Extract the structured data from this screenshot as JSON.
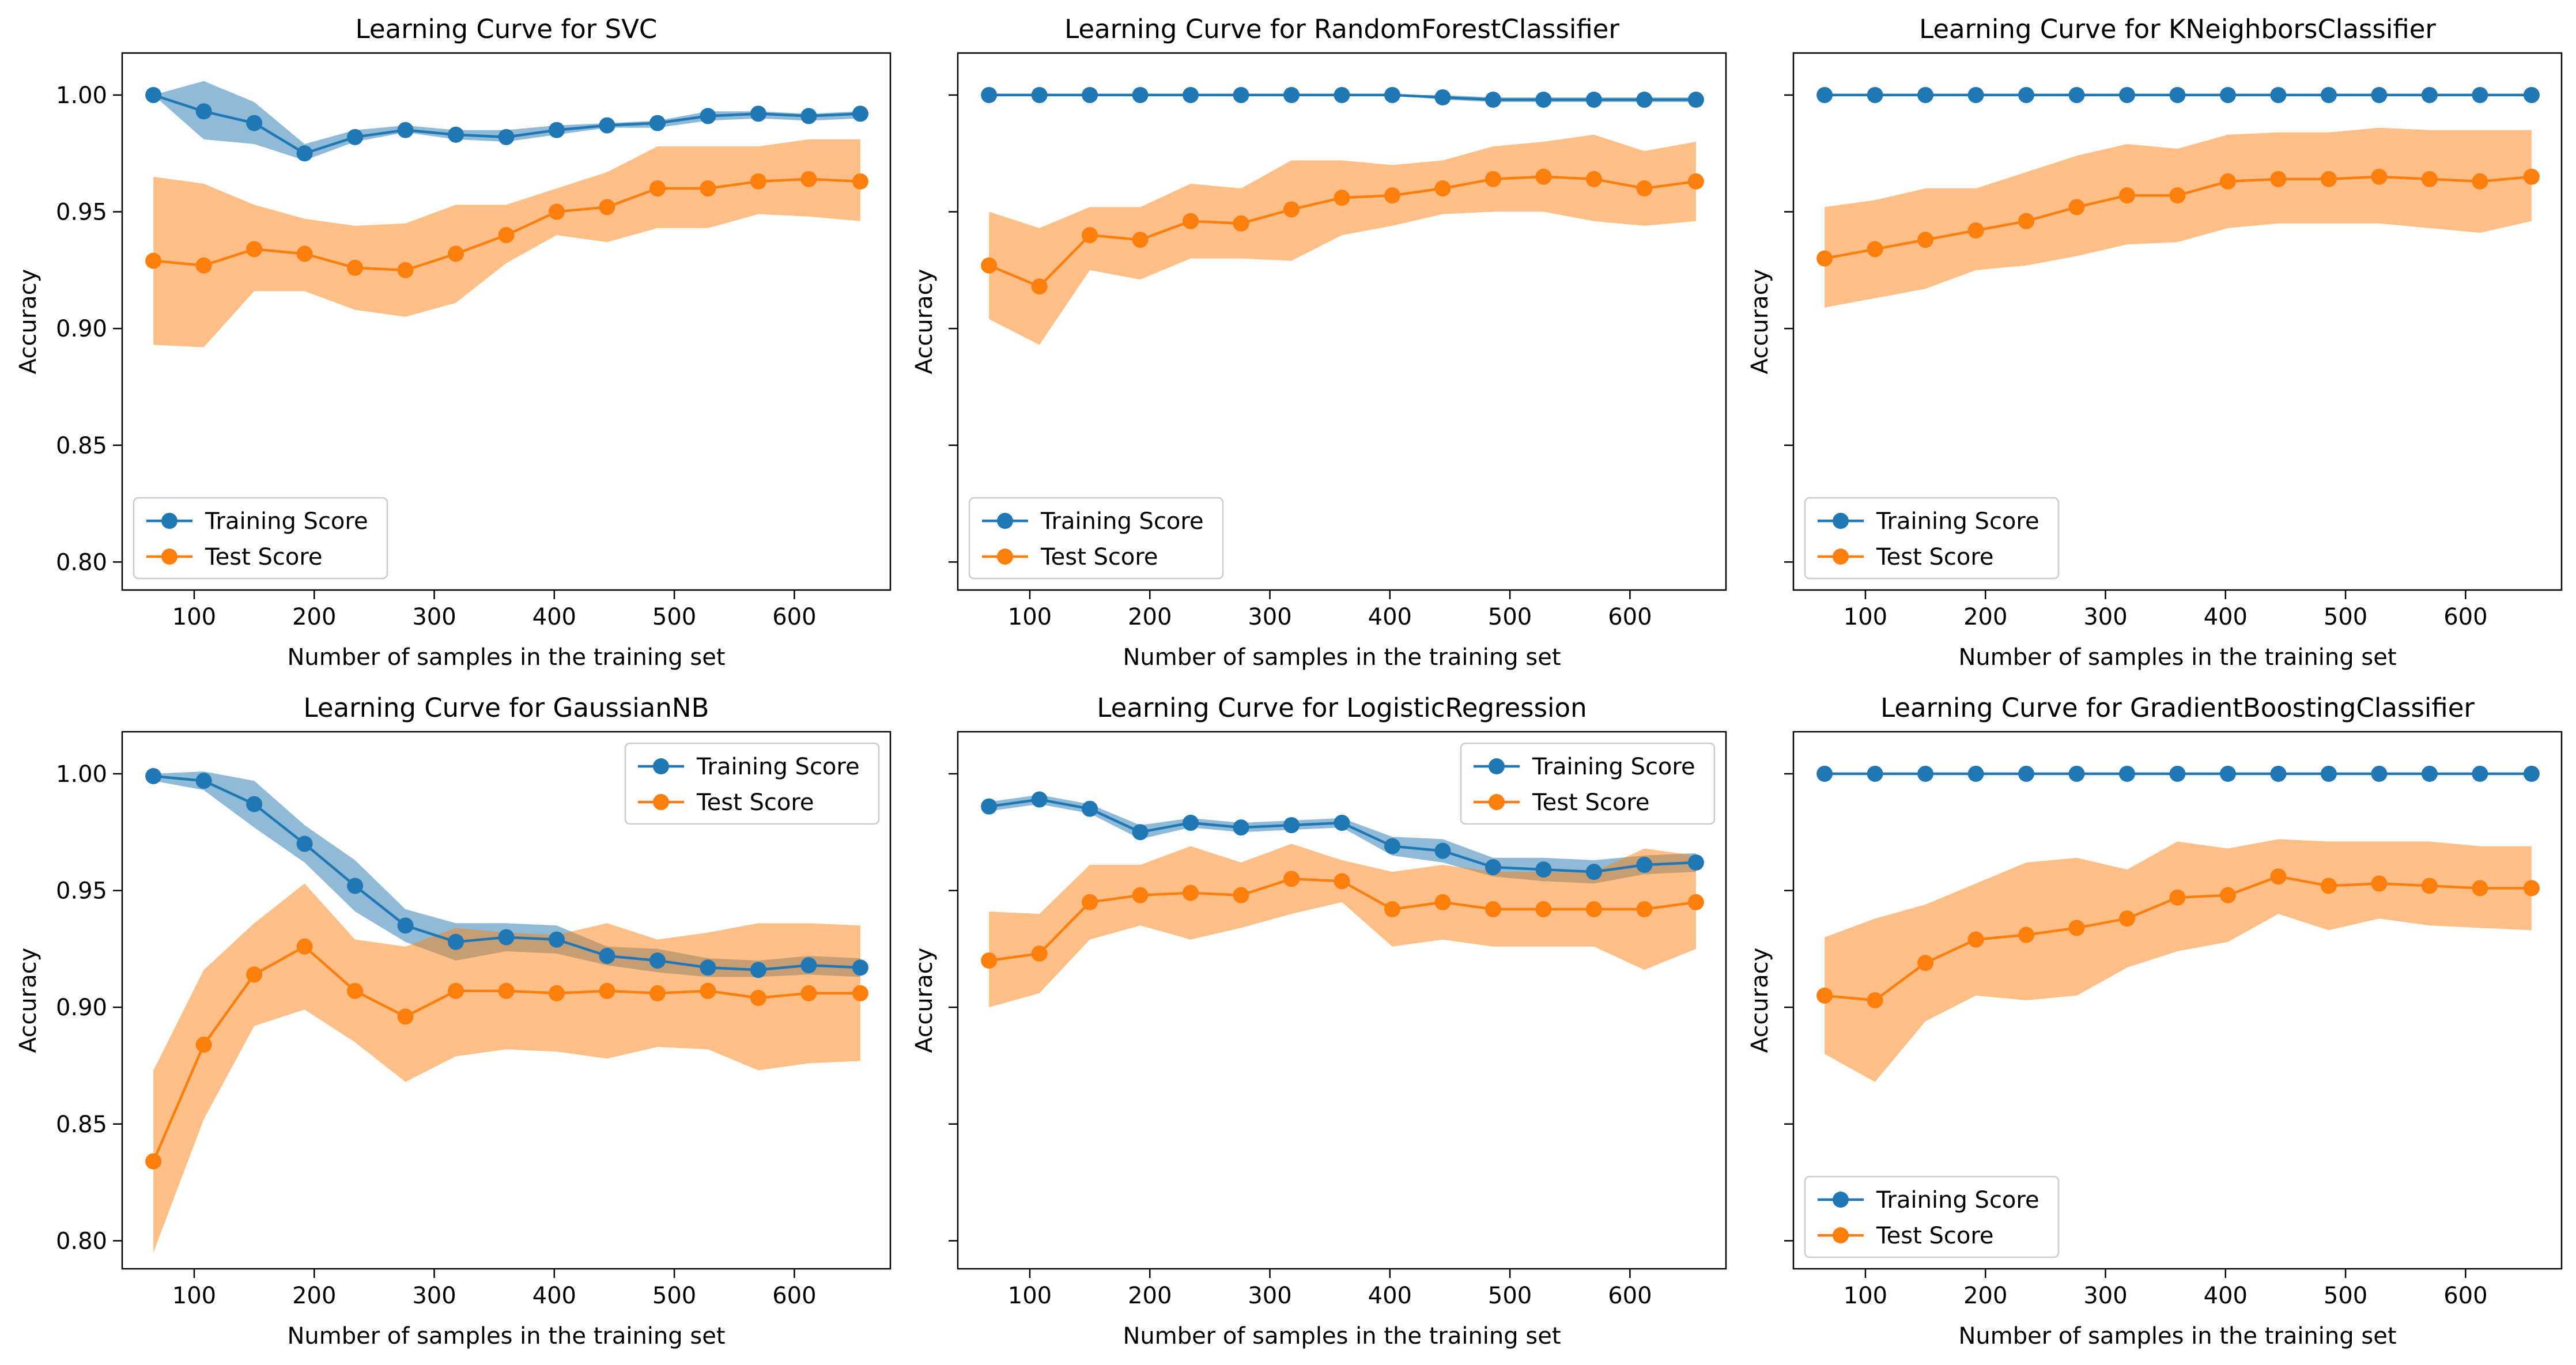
{
  "colors": {
    "train": "#1f77b4",
    "test": "#ff7f0e"
  },
  "shared": {
    "xlabel": "Number of samples in the training set",
    "ylabel": "Accuracy",
    "x_ticks": [
      100,
      200,
      300,
      400,
      500,
      600
    ],
    "y_ticks": [
      0.8,
      0.85,
      0.9,
      0.95,
      1.0
    ],
    "xlim": [
      40,
      680
    ],
    "ylim": [
      0.788,
      1.018
    ],
    "train_sizes": [
      66,
      108,
      150,
      192,
      234,
      276,
      318,
      360,
      402,
      444,
      486,
      528,
      570,
      612,
      655
    ]
  },
  "chart_data": [
    {
      "type": "line",
      "title": "Learning Curve for SVC",
      "legend_position": "lower-left",
      "series": [
        {
          "name": "Training Score",
          "values": [
            1.0,
            0.993,
            0.988,
            0.975,
            0.982,
            0.985,
            0.983,
            0.982,
            0.985,
            0.987,
            0.988,
            0.991,
            0.992,
            0.991,
            0.992
          ],
          "lower": [
            1.0,
            0.981,
            0.979,
            0.972,
            0.98,
            0.984,
            0.981,
            0.98,
            0.983,
            0.986,
            0.986,
            0.989,
            0.99,
            0.989,
            0.99
          ],
          "upper": [
            1.0,
            1.006,
            0.997,
            0.979,
            0.985,
            0.987,
            0.985,
            0.985,
            0.987,
            0.988,
            0.989,
            0.993,
            0.993,
            0.992,
            0.993
          ]
        },
        {
          "name": "Test Score",
          "values": [
            0.929,
            0.927,
            0.934,
            0.932,
            0.926,
            0.925,
            0.932,
            0.94,
            0.95,
            0.952,
            0.96,
            0.96,
            0.963,
            0.964,
            0.963
          ],
          "lower": [
            0.893,
            0.892,
            0.916,
            0.916,
            0.908,
            0.905,
            0.911,
            0.928,
            0.94,
            0.937,
            0.943,
            0.943,
            0.949,
            0.948,
            0.946
          ],
          "upper": [
            0.965,
            0.962,
            0.953,
            0.947,
            0.944,
            0.945,
            0.953,
            0.953,
            0.96,
            0.967,
            0.978,
            0.978,
            0.978,
            0.981,
            0.981
          ]
        }
      ]
    },
    {
      "type": "line",
      "title": "Learning Curve for RandomForestClassifier",
      "legend_position": "lower-left",
      "series": [
        {
          "name": "Training Score",
          "values": [
            1.0,
            1.0,
            1.0,
            1.0,
            1.0,
            1.0,
            1.0,
            1.0,
            1.0,
            0.999,
            0.998,
            0.998,
            0.998,
            0.998,
            0.998
          ],
          "lower": [
            1.0,
            1.0,
            1.0,
            1.0,
            1.0,
            1.0,
            1.0,
            1.0,
            1.0,
            0.998,
            0.997,
            0.997,
            0.997,
            0.997,
            0.997
          ],
          "upper": [
            1.0,
            1.0,
            1.0,
            1.0,
            1.0,
            1.0,
            1.0,
            1.0,
            1.0,
            1.0,
            0.999,
            0.999,
            0.999,
            0.999,
            0.999
          ]
        },
        {
          "name": "Test Score",
          "values": [
            0.927,
            0.918,
            0.94,
            0.938,
            0.946,
            0.945,
            0.951,
            0.956,
            0.957,
            0.96,
            0.964,
            0.965,
            0.964,
            0.96,
            0.963
          ],
          "lower": [
            0.904,
            0.893,
            0.925,
            0.921,
            0.93,
            0.93,
            0.929,
            0.94,
            0.944,
            0.949,
            0.95,
            0.95,
            0.946,
            0.944,
            0.946
          ],
          "upper": [
            0.95,
            0.943,
            0.952,
            0.952,
            0.962,
            0.96,
            0.972,
            0.972,
            0.97,
            0.972,
            0.978,
            0.98,
            0.983,
            0.976,
            0.98
          ]
        }
      ]
    },
    {
      "type": "line",
      "title": "Learning Curve for KNeighborsClassifier",
      "legend_position": "lower-left",
      "series": [
        {
          "name": "Training Score",
          "values": [
            1.0,
            1.0,
            1.0,
            1.0,
            1.0,
            1.0,
            1.0,
            1.0,
            1.0,
            1.0,
            1.0,
            1.0,
            1.0,
            1.0,
            1.0
          ],
          "lower": [
            1.0,
            1.0,
            1.0,
            1.0,
            1.0,
            1.0,
            1.0,
            1.0,
            1.0,
            1.0,
            1.0,
            1.0,
            1.0,
            1.0,
            1.0
          ],
          "upper": [
            1.0,
            1.0,
            1.0,
            1.0,
            1.0,
            1.0,
            1.0,
            1.0,
            1.0,
            1.0,
            1.0,
            1.0,
            1.0,
            1.0,
            1.0
          ]
        },
        {
          "name": "Test Score",
          "values": [
            0.93,
            0.934,
            0.938,
            0.942,
            0.946,
            0.952,
            0.957,
            0.957,
            0.963,
            0.964,
            0.964,
            0.965,
            0.964,
            0.963,
            0.965
          ],
          "lower": [
            0.909,
            0.913,
            0.917,
            0.925,
            0.927,
            0.931,
            0.936,
            0.937,
            0.943,
            0.945,
            0.945,
            0.945,
            0.943,
            0.941,
            0.946
          ],
          "upper": [
            0.952,
            0.955,
            0.96,
            0.96,
            0.967,
            0.974,
            0.979,
            0.977,
            0.983,
            0.984,
            0.984,
            0.986,
            0.985,
            0.985,
            0.985
          ]
        }
      ]
    },
    {
      "type": "line",
      "title": "Learning Curve for GaussianNB",
      "legend_position": "upper-right",
      "series": [
        {
          "name": "Training Score",
          "values": [
            0.999,
            0.997,
            0.987,
            0.97,
            0.952,
            0.935,
            0.928,
            0.93,
            0.929,
            0.922,
            0.92,
            0.917,
            0.916,
            0.918,
            0.917
          ],
          "lower": [
            0.997,
            0.993,
            0.977,
            0.962,
            0.941,
            0.928,
            0.92,
            0.924,
            0.923,
            0.918,
            0.915,
            0.913,
            0.913,
            0.914,
            0.913
          ],
          "upper": [
            1.0,
            1.001,
            0.997,
            0.978,
            0.963,
            0.942,
            0.936,
            0.936,
            0.935,
            0.926,
            0.925,
            0.921,
            0.92,
            0.922,
            0.921
          ]
        },
        {
          "name": "Test Score",
          "values": [
            0.834,
            0.884,
            0.914,
            0.926,
            0.907,
            0.896,
            0.907,
            0.907,
            0.906,
            0.907,
            0.906,
            0.907,
            0.904,
            0.906,
            0.906
          ],
          "lower": [
            0.795,
            0.852,
            0.892,
            0.899,
            0.885,
            0.868,
            0.879,
            0.882,
            0.881,
            0.878,
            0.883,
            0.882,
            0.873,
            0.876,
            0.877
          ],
          "upper": [
            0.873,
            0.916,
            0.936,
            0.953,
            0.929,
            0.926,
            0.934,
            0.932,
            0.931,
            0.936,
            0.929,
            0.932,
            0.936,
            0.936,
            0.935
          ]
        }
      ]
    },
    {
      "type": "line",
      "title": "Learning Curve for LogisticRegression",
      "legend_position": "upper-right",
      "series": [
        {
          "name": "Training Score",
          "values": [
            0.986,
            0.989,
            0.985,
            0.975,
            0.979,
            0.977,
            0.978,
            0.979,
            0.969,
            0.967,
            0.96,
            0.959,
            0.958,
            0.961,
            0.962
          ],
          "lower": [
            0.984,
            0.987,
            0.983,
            0.972,
            0.977,
            0.975,
            0.976,
            0.977,
            0.965,
            0.962,
            0.956,
            0.954,
            0.953,
            0.957,
            0.958
          ],
          "upper": [
            0.988,
            0.991,
            0.987,
            0.978,
            0.981,
            0.979,
            0.98,
            0.981,
            0.973,
            0.972,
            0.964,
            0.964,
            0.963,
            0.965,
            0.966
          ]
        },
        {
          "name": "Test Score",
          "values": [
            0.92,
            0.923,
            0.945,
            0.948,
            0.949,
            0.948,
            0.955,
            0.954,
            0.942,
            0.945,
            0.942,
            0.942,
            0.942,
            0.942,
            0.945
          ],
          "lower": [
            0.9,
            0.906,
            0.929,
            0.935,
            0.929,
            0.934,
            0.94,
            0.945,
            0.926,
            0.929,
            0.926,
            0.926,
            0.926,
            0.916,
            0.925
          ],
          "upper": [
            0.941,
            0.94,
            0.961,
            0.961,
            0.969,
            0.962,
            0.97,
            0.963,
            0.958,
            0.961,
            0.958,
            0.958,
            0.958,
            0.968,
            0.965
          ]
        }
      ]
    },
    {
      "type": "line",
      "title": "Learning Curve for GradientBoostingClassifier",
      "legend_position": "lower-left",
      "series": [
        {
          "name": "Training Score",
          "values": [
            1.0,
            1.0,
            1.0,
            1.0,
            1.0,
            1.0,
            1.0,
            1.0,
            1.0,
            1.0,
            1.0,
            1.0,
            1.0,
            1.0,
            1.0
          ],
          "lower": [
            1.0,
            1.0,
            1.0,
            1.0,
            1.0,
            1.0,
            1.0,
            1.0,
            1.0,
            1.0,
            1.0,
            1.0,
            1.0,
            1.0,
            1.0
          ],
          "upper": [
            1.0,
            1.0,
            1.0,
            1.0,
            1.0,
            1.0,
            1.0,
            1.0,
            1.0,
            1.0,
            1.0,
            1.0,
            1.0,
            1.0,
            1.0
          ]
        },
        {
          "name": "Test Score",
          "values": [
            0.905,
            0.903,
            0.919,
            0.929,
            0.931,
            0.934,
            0.938,
            0.947,
            0.948,
            0.956,
            0.952,
            0.953,
            0.952,
            0.951,
            0.951
          ],
          "lower": [
            0.88,
            0.868,
            0.894,
            0.905,
            0.903,
            0.905,
            0.917,
            0.924,
            0.928,
            0.94,
            0.933,
            0.938,
            0.935,
            0.934,
            0.933
          ],
          "upper": [
            0.93,
            0.938,
            0.944,
            0.953,
            0.962,
            0.964,
            0.959,
            0.971,
            0.968,
            0.972,
            0.971,
            0.971,
            0.971,
            0.969,
            0.969
          ]
        }
      ]
    }
  ]
}
